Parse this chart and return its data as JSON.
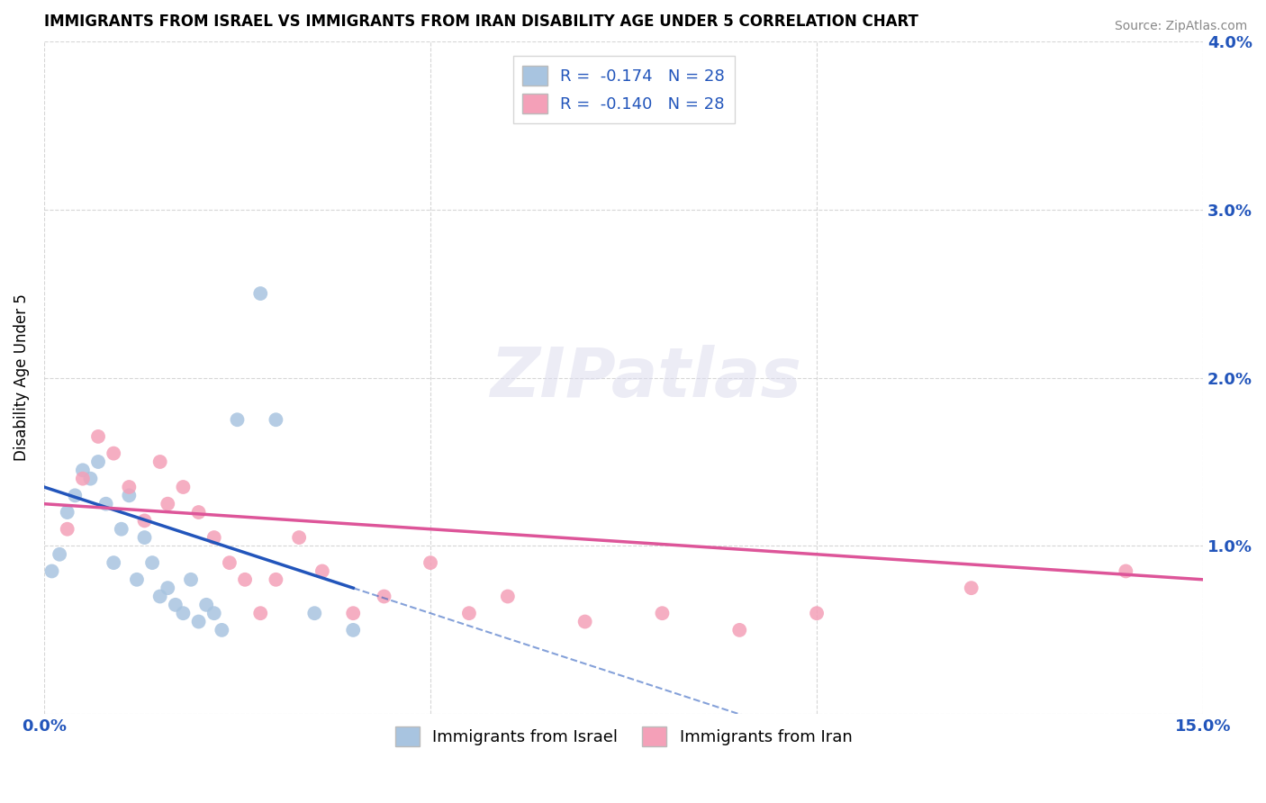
{
  "title": "IMMIGRANTS FROM ISRAEL VS IMMIGRANTS FROM IRAN DISABILITY AGE UNDER 5 CORRELATION CHART",
  "source": "Source: ZipAtlas.com",
  "ylabel": "Disability Age Under 5",
  "xlim": [
    0.0,
    0.15
  ],
  "ylim": [
    0.0,
    0.04
  ],
  "israel_color": "#a8c4e0",
  "iran_color": "#f4a0b8",
  "israel_line_color": "#2255bb",
  "iran_line_color": "#dd5599",
  "israel_R": -0.174,
  "israel_N": 28,
  "iran_R": -0.14,
  "iran_N": 28,
  "israel_x": [
    0.001,
    0.002,
    0.003,
    0.004,
    0.005,
    0.006,
    0.007,
    0.008,
    0.009,
    0.01,
    0.011,
    0.012,
    0.013,
    0.014,
    0.015,
    0.016,
    0.017,
    0.018,
    0.019,
    0.02,
    0.021,
    0.022,
    0.023,
    0.025,
    0.028,
    0.03,
    0.035,
    0.04
  ],
  "israel_y": [
    0.0085,
    0.0095,
    0.012,
    0.013,
    0.0145,
    0.014,
    0.015,
    0.0125,
    0.009,
    0.011,
    0.013,
    0.008,
    0.0105,
    0.009,
    0.007,
    0.0075,
    0.0065,
    0.006,
    0.008,
    0.0055,
    0.0065,
    0.006,
    0.005,
    0.0175,
    0.025,
    0.0175,
    0.006,
    0.005
  ],
  "iran_x": [
    0.003,
    0.005,
    0.007,
    0.009,
    0.011,
    0.013,
    0.015,
    0.016,
    0.018,
    0.02,
    0.022,
    0.024,
    0.026,
    0.028,
    0.03,
    0.033,
    0.036,
    0.04,
    0.044,
    0.05,
    0.055,
    0.06,
    0.07,
    0.08,
    0.09,
    0.1,
    0.12,
    0.14
  ],
  "iran_y": [
    0.011,
    0.014,
    0.0165,
    0.0155,
    0.0135,
    0.0115,
    0.015,
    0.0125,
    0.0135,
    0.012,
    0.0105,
    0.009,
    0.008,
    0.006,
    0.008,
    0.0105,
    0.0085,
    0.006,
    0.007,
    0.009,
    0.006,
    0.007,
    0.0055,
    0.006,
    0.005,
    0.006,
    0.0075,
    0.0085
  ],
  "legend_israel": "Immigrants from Israel",
  "legend_iran": "Immigrants from Iran",
  "background_color": "#ffffff",
  "grid_color": "#cccccc",
  "israel_line_x0": 0.0,
  "israel_line_y0": 0.0135,
  "israel_line_x1": 0.04,
  "israel_line_y1": 0.0075,
  "iran_line_x0": 0.0,
  "iran_line_y0": 0.0125,
  "iran_line_x1": 0.15,
  "iran_line_y1": 0.008
}
